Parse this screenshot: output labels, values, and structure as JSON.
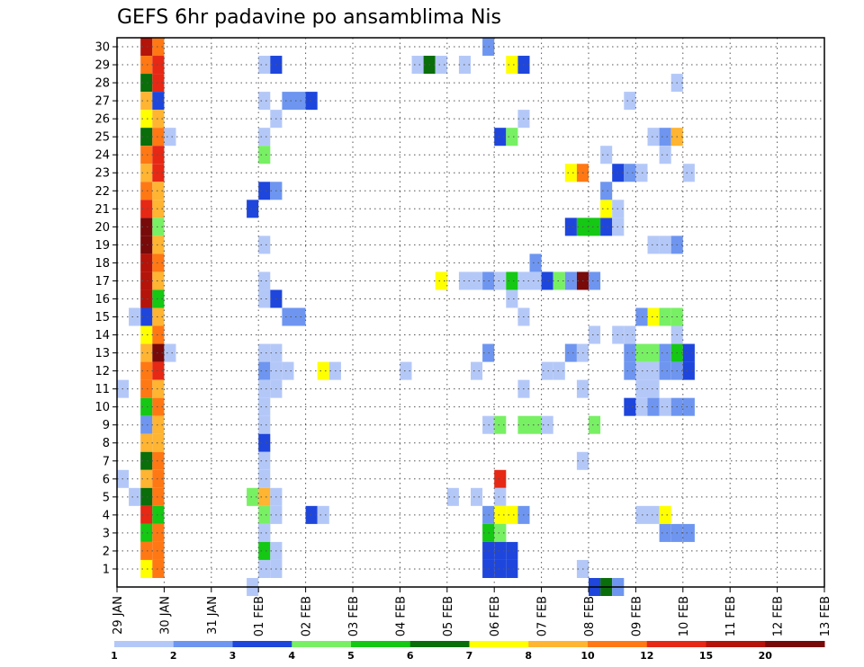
{
  "chart_data": {
    "type": "heatmap",
    "title": "GEFS 6hr padavine po ansamblima Nis",
    "x_ticks": [
      "29 JAN",
      "30 JAN",
      "31 JAN",
      "01 FEB",
      "02 FEB",
      "03 FEB",
      "04 FEB",
      "05 FEB",
      "06 FEB",
      "07 FEB",
      "08 FEB",
      "09 FEB",
      "10 FEB",
      "11 FEB",
      "12 FEB",
      "13 FEB"
    ],
    "y_ticks": [
      "1",
      "2",
      "3",
      "4",
      "5",
      "6",
      "7",
      "8",
      "9",
      "10",
      "11",
      "12",
      "13",
      "14",
      "15",
      "16",
      "17",
      "18",
      "19",
      "20",
      "21",
      "22",
      "23",
      "24",
      "25",
      "26",
      "27",
      "28",
      "29",
      "30"
    ],
    "xlim": [
      0,
      15
    ],
    "ylim": [
      0,
      30
    ],
    "grid": true,
    "legend_placement": "bottom",
    "legend_labels": [
      "1",
      "2",
      "3",
      "4",
      "5",
      "6",
      "7",
      "8",
      "10",
      "12",
      "15",
      "20"
    ],
    "palette": [
      "#b4c8f8",
      "#6e96f0",
      "#1e46dc",
      "#78f064",
      "#14c814",
      "#0a6e0a",
      "#ffff00",
      "#ffb432",
      "#ff7814",
      "#e62814",
      "#b4140a",
      "#780a0a"
    ],
    "cells_note": "each cell: [time index in 6h steps from 29 JAN 00, ensemble member (row index from bottom, 0 = lowest row), color class index into palette]",
    "cells": [
      [
        2,
        29,
        10
      ],
      [
        3,
        29,
        8
      ],
      [
        2,
        28,
        8
      ],
      [
        3,
        28,
        9
      ],
      [
        2,
        27,
        5
      ],
      [
        3,
        27,
        9
      ],
      [
        2,
        26,
        7
      ],
      [
        3,
        26,
        2
      ],
      [
        2,
        25,
        6
      ],
      [
        3,
        25,
        7
      ],
      [
        2,
        24,
        5
      ],
      [
        3,
        24,
        8
      ],
      [
        2,
        23,
        8
      ],
      [
        3,
        23,
        9
      ],
      [
        2,
        22,
        7
      ],
      [
        3,
        22,
        9
      ],
      [
        2,
        21,
        8
      ],
      [
        3,
        21,
        7
      ],
      [
        2,
        20,
        9
      ],
      [
        3,
        20,
        7
      ],
      [
        2,
        19,
        11
      ],
      [
        3,
        19,
        3
      ],
      [
        2,
        18,
        11
      ],
      [
        3,
        18,
        7
      ],
      [
        2,
        17,
        10
      ],
      [
        3,
        17,
        8
      ],
      [
        2,
        16,
        10
      ],
      [
        3,
        16,
        7
      ],
      [
        2,
        15,
        10
      ],
      [
        3,
        15,
        4
      ],
      [
        2,
        14,
        2
      ],
      [
        3,
        14,
        7
      ],
      [
        2,
        13,
        6
      ],
      [
        3,
        13,
        8
      ],
      [
        2,
        12,
        7
      ],
      [
        3,
        12,
        11
      ],
      [
        2,
        11,
        8
      ],
      [
        3,
        11,
        9
      ],
      [
        2,
        10,
        8
      ],
      [
        3,
        10,
        7
      ],
      [
        2,
        9,
        4
      ],
      [
        3,
        9,
        8
      ],
      [
        2,
        8,
        1
      ],
      [
        3,
        8,
        7
      ],
      [
        2,
        7,
        7
      ],
      [
        3,
        7,
        7
      ],
      [
        2,
        6,
        5
      ],
      [
        3,
        6,
        8
      ],
      [
        2,
        5,
        7
      ],
      [
        3,
        5,
        8
      ],
      [
        2,
        4,
        5
      ],
      [
        3,
        4,
        8
      ],
      [
        2,
        3,
        9
      ],
      [
        3,
        3,
        4
      ],
      [
        2,
        2,
        4
      ],
      [
        3,
        2,
        8
      ],
      [
        2,
        1,
        8
      ],
      [
        3,
        1,
        8
      ],
      [
        2,
        0,
        6
      ],
      [
        3,
        0,
        8
      ],
      [
        4,
        24,
        0
      ],
      [
        4,
        12,
        0
      ],
      [
        1,
        14,
        0
      ],
      [
        1,
        4,
        0
      ],
      [
        0,
        10,
        0
      ],
      [
        0,
        5,
        0
      ],
      [
        12,
        28,
        0
      ],
      [
        13,
        28,
        2
      ],
      [
        12,
        26,
        0
      ],
      [
        14,
        26,
        1
      ],
      [
        15,
        26,
        1
      ],
      [
        16,
        26,
        2
      ],
      [
        13,
        25,
        0
      ],
      [
        12,
        24,
        0
      ],
      [
        12,
        23,
        3
      ],
      [
        12,
        21,
        2
      ],
      [
        13,
        21,
        1
      ],
      [
        11,
        20,
        2
      ],
      [
        12,
        18,
        0
      ],
      [
        12,
        16,
        0
      ],
      [
        12,
        15,
        0
      ],
      [
        13,
        15,
        2
      ],
      [
        14,
        14,
        1
      ],
      [
        15,
        14,
        1
      ],
      [
        12,
        12,
        0
      ],
      [
        13,
        12,
        0
      ],
      [
        12,
        11,
        1
      ],
      [
        13,
        11,
        0
      ],
      [
        14,
        11,
        0
      ],
      [
        17,
        11,
        6
      ],
      [
        12,
        10,
        0
      ],
      [
        13,
        10,
        0
      ],
      [
        12,
        9,
        0
      ],
      [
        12,
        8,
        0
      ],
      [
        12,
        7,
        2
      ],
      [
        12,
        6,
        0
      ],
      [
        12,
        5,
        0
      ],
      [
        11,
        4,
        3
      ],
      [
        12,
        4,
        7
      ],
      [
        13,
        4,
        0
      ],
      [
        12,
        3,
        3
      ],
      [
        12,
        2,
        0
      ],
      [
        13,
        3,
        0
      ],
      [
        12,
        2,
        0
      ],
      [
        12,
        1,
        4
      ],
      [
        13,
        1,
        0
      ],
      [
        12,
        0,
        0
      ],
      [
        13,
        0,
        0
      ],
      [
        16,
        3,
        2
      ],
      [
        17,
        3,
        0
      ],
      [
        11,
        -1,
        0
      ],
      [
        25,
        28,
        0
      ],
      [
        26,
        28,
        5
      ],
      [
        27,
        28,
        0
      ],
      [
        29,
        28,
        0
      ],
      [
        24,
        11,
        0
      ],
      [
        18,
        11,
        0
      ],
      [
        40,
        13,
        0
      ],
      [
        39,
        10,
        0
      ],
      [
        39,
        6,
        0
      ],
      [
        39,
        0,
        0
      ],
      [
        40,
        8,
        3
      ],
      [
        40,
        -1,
        2
      ],
      [
        41,
        -1,
        5
      ],
      [
        42,
        -1,
        1
      ],
      [
        38,
        22,
        6
      ],
      [
        39,
        22,
        8
      ],
      [
        38,
        19,
        2
      ],
      [
        39,
        19,
        4
      ],
      [
        40,
        19,
        4
      ],
      [
        41,
        19,
        2
      ],
      [
        42,
        19,
        0
      ],
      [
        41,
        20,
        6
      ],
      [
        42,
        20,
        0
      ],
      [
        41,
        21,
        1
      ],
      [
        27,
        16,
        6
      ],
      [
        29,
        16,
        0
      ],
      [
        30,
        16,
        0
      ],
      [
        31,
        16,
        1
      ],
      [
        32,
        16,
        0
      ],
      [
        33,
        16,
        4
      ],
      [
        34,
        16,
        0
      ],
      [
        35,
        16,
        0
      ],
      [
        36,
        16,
        2
      ],
      [
        37,
        16,
        3
      ],
      [
        38,
        16,
        1
      ],
      [
        39,
        16,
        11
      ],
      [
        40,
        16,
        1
      ],
      [
        33,
        15,
        0
      ],
      [
        34,
        14,
        0
      ],
      [
        31,
        12,
        1
      ],
      [
        30,
        11,
        0
      ],
      [
        34,
        10,
        0
      ],
      [
        31,
        8,
        0
      ],
      [
        32,
        8,
        3
      ],
      [
        34,
        8,
        3
      ],
      [
        35,
        8,
        3
      ],
      [
        36,
        8,
        0
      ],
      [
        32,
        5,
        9
      ],
      [
        32,
        4,
        0
      ],
      [
        31,
        3,
        1
      ],
      [
        32,
        3,
        6
      ],
      [
        33,
        3,
        6
      ],
      [
        34,
        3,
        1
      ],
      [
        32,
        2,
        3
      ],
      [
        31,
        2,
        4
      ],
      [
        32,
        2,
        3
      ],
      [
        31,
        1,
        2
      ],
      [
        32,
        1,
        2
      ],
      [
        33,
        1,
        2
      ],
      [
        31,
        0,
        2
      ],
      [
        32,
        0,
        2
      ],
      [
        33,
        0,
        2
      ],
      [
        30,
        4,
        0
      ],
      [
        28,
        4,
        0
      ],
      [
        33,
        28,
        6
      ],
      [
        34,
        28,
        2
      ],
      [
        32,
        24,
        2
      ],
      [
        33,
        24,
        3
      ],
      [
        31,
        29,
        1
      ],
      [
        34,
        25,
        0
      ],
      [
        35,
        17,
        1
      ],
      [
        42,
        22,
        2
      ],
      [
        43,
        22,
        1
      ],
      [
        44,
        22,
        0
      ],
      [
        41,
        23,
        0
      ],
      [
        45,
        18,
        0
      ],
      [
        46,
        18,
        0
      ],
      [
        47,
        18,
        1
      ],
      [
        44,
        14,
        1
      ],
      [
        45,
        14,
        6
      ],
      [
        46,
        14,
        3
      ],
      [
        47,
        14,
        3
      ],
      [
        43,
        12,
        1
      ],
      [
        44,
        12,
        3
      ],
      [
        45,
        12,
        3
      ],
      [
        46,
        12,
        1
      ],
      [
        47,
        12,
        4
      ],
      [
        48,
        12,
        2
      ],
      [
        44,
        11,
        0
      ],
      [
        45,
        11,
        0
      ],
      [
        46,
        11,
        1
      ],
      [
        47,
        11,
        1
      ],
      [
        48,
        11,
        2
      ],
      [
        45,
        10,
        0
      ],
      [
        45,
        9,
        1
      ],
      [
        46,
        9,
        0
      ],
      [
        47,
        9,
        1
      ],
      [
        48,
        9,
        1
      ],
      [
        47,
        13,
        0
      ],
      [
        42,
        13,
        0
      ],
      [
        43,
        13,
        0
      ],
      [
        44,
        10,
        0
      ],
      [
        43,
        11,
        1
      ],
      [
        45,
        24,
        0
      ],
      [
        46,
        24,
        1
      ],
      [
        47,
        24,
        7
      ],
      [
        46,
        23,
        0
      ],
      [
        48,
        22,
        0
      ],
      [
        47,
        27,
        0
      ],
      [
        43,
        26,
        0
      ],
      [
        44,
        3,
        0
      ],
      [
        45,
        3,
        0
      ],
      [
        46,
        3,
        6
      ],
      [
        46,
        2,
        1
      ],
      [
        47,
        2,
        1
      ],
      [
        48,
        2,
        1
      ],
      [
        43,
        9,
        2
      ],
      [
        44,
        9,
        0
      ],
      [
        37,
        11,
        0
      ],
      [
        36,
        11,
        0
      ],
      [
        38,
        12,
        1
      ],
      [
        39,
        12,
        0
      ]
    ]
  }
}
